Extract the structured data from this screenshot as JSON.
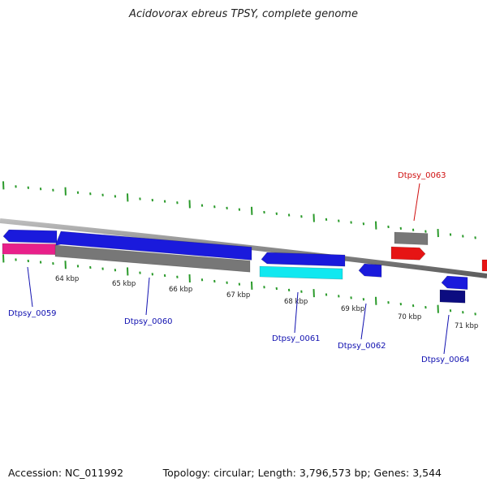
{
  "title": "Acidovorax ebreus TPSY, complete genome",
  "footer": {
    "accession": "Accession: NC_011992",
    "summary": "Topology: circular; Length: 3,796,573 bp; Genes: 3,544"
  },
  "colors": {
    "backbone": "#8a8a8a",
    "tick": "#2a9a2a",
    "gene_blue": "#1a1adc",
    "gene_navy": "#0c0c80",
    "gene_red": "#e61414",
    "gene_gray": "#777777",
    "gene_pink": "#e8208a",
    "gene_cyan": "#10e8f0",
    "label_blue": "#1010b0",
    "label_red": "#d01010"
  },
  "kbp_labels": [
    "64 kbp",
    "65 kbp",
    "66 kbp",
    "67 kbp",
    "68 kbp",
    "69 kbp",
    "70 kbp",
    "71 kbp"
  ],
  "gene_labels": [
    {
      "name": "Dtpsy_0059",
      "color": "label_blue"
    },
    {
      "name": "Dtpsy_0060",
      "color": "label_blue"
    },
    {
      "name": "Dtpsy_0061",
      "color": "label_blue"
    },
    {
      "name": "Dtpsy_0062",
      "color": "label_blue"
    },
    {
      "name": "Dtpsy_0063",
      "color": "label_red"
    },
    {
      "name": "Dtpsy_0064",
      "color": "label_blue"
    }
  ]
}
